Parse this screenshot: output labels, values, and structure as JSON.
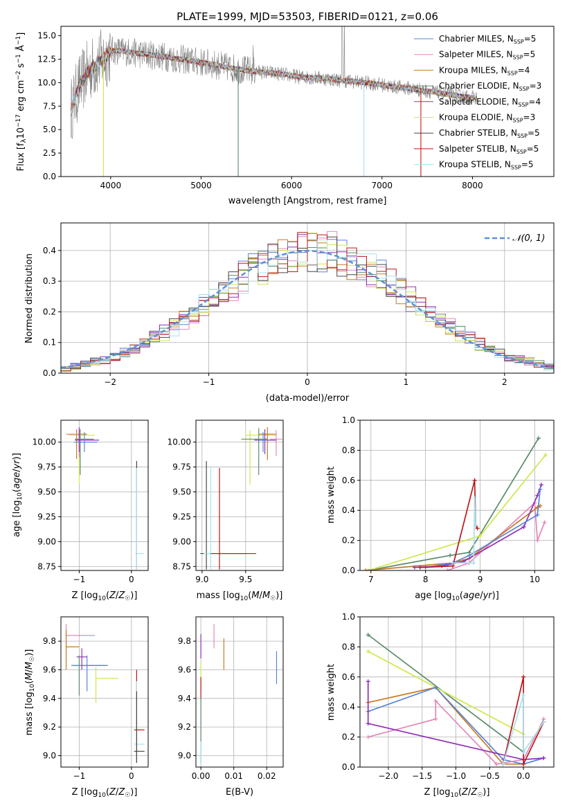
{
  "chart_data": [
    {
      "id": "spectrum",
      "type": "line",
      "title": "PLATE=1999, MJD=53503, FIBERID=0121, z=0.06",
      "xlabel": "wavelength [Angstrom, rest frame]",
      "ylabel": "Flux [fλ10⁻¹⁷ erg cm⁻² s⁻¹ Å⁻¹]",
      "xlim": [
        3450,
        8900
      ],
      "ylim": [
        0,
        16
      ],
      "xticks": [
        4000,
        5000,
        6000,
        7000,
        8000
      ],
      "yticks": [
        0.0,
        2.5,
        5.0,
        7.5,
        10.0,
        12.5,
        15.0
      ],
      "legend": "top-right",
      "data_color": "#808080",
      "continuum": [
        [
          3560,
          7.0
        ],
        [
          3650,
          9.6
        ],
        [
          3750,
          11.2
        ],
        [
          3850,
          12.0
        ],
        [
          3950,
          12.8
        ],
        [
          4000,
          13.4
        ],
        [
          4100,
          13.4
        ],
        [
          4300,
          13.1
        ],
        [
          4500,
          12.9
        ],
        [
          4700,
          12.6
        ],
        [
          4900,
          12.3
        ],
        [
          5100,
          12.0
        ],
        [
          5300,
          11.6
        ],
        [
          5500,
          11.3
        ],
        [
          5700,
          11.1
        ],
        [
          5900,
          10.9
        ],
        [
          6100,
          10.6
        ],
        [
          6300,
          10.5
        ],
        [
          6500,
          10.3
        ],
        [
          6700,
          10.1
        ],
        [
          6900,
          9.9
        ],
        [
          7100,
          9.6
        ],
        [
          7300,
          9.4
        ],
        [
          7500,
          9.1
        ],
        [
          7700,
          8.8
        ],
        [
          7900,
          8.5
        ],
        [
          8050,
          8.3
        ]
      ],
      "model_lines": [
        {
          "label": "Chabrier MILES, N$_{SSP}$=5",
          "color": "#5b84d6"
        },
        {
          "label": "Salpeter MILES, N$_{SSP}$=5",
          "color": "#e287b9"
        },
        {
          "label": "Kroupa MILES, N$_{SSP}$=4",
          "color": "#c87822"
        },
        {
          "label": "Chabrier ELODIE, N$_{SSP}$=3",
          "color": "#5a8a6b"
        },
        {
          "label": "Salpeter ELODIE, N$_{SSP}$=4",
          "color": "#8f2fb8"
        },
        {
          "label": "Kroupa ELODIE, N$_{SSP}$=3",
          "color": "#cde84b"
        },
        {
          "label": "Chabrier STELIB, N$_{SSP}$=5",
          "color": "#474747"
        },
        {
          "label": "Salpeter STELIB, N$_{SSP}$=5",
          "color": "#b81818"
        },
        {
          "label": "Kroupa STELIB, N$_{SSP}$=5",
          "color": "#a8e0ec"
        }
      ],
      "legend_entries": [
        {
          "name": "Chabrier MILES",
          "n": "5",
          "color": "#5b84d6"
        },
        {
          "name": "Salpeter MILES",
          "n": "5",
          "color": "#e287b9"
        },
        {
          "name": "Kroupa MILES",
          "n": "4",
          "color": "#c87822"
        },
        {
          "name": "Chabrier ELODIE",
          "n": "3",
          "color": "#5a8a6b"
        },
        {
          "name": "Salpeter ELODIE",
          "n": "4",
          "color": "#8f2fb8"
        },
        {
          "name": "Kroupa ELODIE",
          "n": "3",
          "color": "#cde84b"
        },
        {
          "name": "Chabrier STELIB",
          "n": "5",
          "color": "#474747"
        },
        {
          "name": "Salpeter STELIB",
          "n": "5",
          "color": "#b81818"
        },
        {
          "name": "Kroupa STELIB",
          "n": "5",
          "color": "#a8e0ec"
        }
      ]
    },
    {
      "id": "residuals",
      "type": "histogram",
      "xlabel": "(data-model)/error",
      "ylabel": "Normed distribution",
      "xlim": [
        -2.5,
        2.5
      ],
      "ylim": [
        0,
        0.49
      ],
      "xticks": [
        -2,
        -1,
        0,
        1,
        2
      ],
      "yticks": [
        0.0,
        0.1,
        0.2,
        0.3,
        0.4
      ],
      "grid": true,
      "legend": "top-right",
      "gaussian_label": "𝒩(0, 1)",
      "gaussian_color": "#5b8fd6",
      "colors": [
        "#5b84d6",
        "#e287b9",
        "#c87822",
        "#5a8a6b",
        "#8f2fb8",
        "#cde84b",
        "#474747",
        "#b81818",
        "#a8e0ec"
      ],
      "bin_width": 0.1
    },
    {
      "id": "age_vs_Z",
      "type": "errorbar",
      "xlabel": "Z [log₁₀(Z/Z☉)]",
      "ylabel": "age  [log₁₀(age/yr)]",
      "xlim": [
        -1.35,
        0.32
      ],
      "ylim": [
        8.71,
        10.22
      ],
      "xticks": [
        -1,
        0
      ],
      "yticks": [
        8.75,
        9.0,
        9.25,
        9.5,
        9.75,
        10.0
      ],
      "grid": true,
      "points": [
        {
          "x": -1.0,
          "xl": -1.2,
          "xh": -0.7,
          "y": 10.07,
          "yl": 9.58,
          "yh": 10.12,
          "c": "#cde84b"
        },
        {
          "x": -1.05,
          "xl": -1.25,
          "xh": -0.85,
          "y": 10.08,
          "yl": 9.83,
          "yh": 10.13,
          "c": "#c87822"
        },
        {
          "x": -1.0,
          "xl": -1.25,
          "xh": -0.95,
          "y": 10.08,
          "yl": 9.85,
          "yh": 10.12,
          "c": "#e287b9"
        },
        {
          "x": -0.98,
          "xl": -1.08,
          "xh": -0.72,
          "y": 10.03,
          "yl": 9.67,
          "yh": 10.13,
          "c": "#5a8a6b"
        },
        {
          "x": -1.0,
          "xl": -1.08,
          "xh": -0.62,
          "y": 10.02,
          "yl": 9.9,
          "yh": 10.15,
          "c": "#8f2fb8"
        },
        {
          "x": -0.9,
          "xl": -1.1,
          "xh": -0.65,
          "y": 10.0,
          "yl": 9.9,
          "yh": 10.1,
          "c": "#5b84d6"
        },
        {
          "x": 0.1,
          "xl": 0.08,
          "xh": 0.12,
          "y": 8.88,
          "yl": 8.72,
          "yh": 9.81,
          "c": "#474747"
        },
        {
          "x": 0.1,
          "xl": 0.08,
          "xh": 0.24,
          "y": 8.88,
          "yl": 8.72,
          "yh": 9.74,
          "c": "#a8e0ec"
        }
      ]
    },
    {
      "id": "age_vs_mass",
      "type": "errorbar",
      "xlabel": "mass [log₁₀(M/M☉)]",
      "ylabel": "",
      "xlim": [
        8.93,
        9.93
      ],
      "ylim": [
        8.71,
        10.22
      ],
      "xticks": [
        9.0,
        9.5
      ],
      "yticks": [
        8.75,
        9.0,
        9.25,
        9.5,
        9.75,
        10.0
      ],
      "grid": true,
      "points": [
        {
          "x": 9.55,
          "xl": 9.5,
          "xh": 9.85,
          "y": 10.07,
          "yl": 9.57,
          "yh": 10.12,
          "c": "#cde84b"
        },
        {
          "x": 9.75,
          "xl": 9.65,
          "xh": 9.85,
          "y": 10.08,
          "yl": 9.82,
          "yh": 10.15,
          "c": "#c87822"
        },
        {
          "x": 9.85,
          "xl": 9.78,
          "xh": 9.92,
          "y": 10.03,
          "yl": 9.86,
          "yh": 10.12,
          "c": "#e287b9"
        },
        {
          "x": 9.65,
          "xl": 9.45,
          "xh": 9.75,
          "y": 10.03,
          "yl": 9.67,
          "yh": 10.14,
          "c": "#5a8a6b"
        },
        {
          "x": 9.72,
          "xl": 9.6,
          "xh": 9.85,
          "y": 10.02,
          "yl": 9.88,
          "yh": 10.13,
          "c": "#8f2fb8"
        },
        {
          "x": 9.7,
          "xl": 9.65,
          "xh": 9.75,
          "y": 10.02,
          "yl": 9.9,
          "yh": 10.1,
          "c": "#5b84d6"
        },
        {
          "x": 9.05,
          "xl": 8.98,
          "xh": 9.5,
          "y": 8.88,
          "yl": 8.72,
          "yh": 9.81,
          "c": "#474747"
        },
        {
          "x": 9.1,
          "xl": 9.02,
          "xh": 9.55,
          "y": 8.88,
          "yl": 8.72,
          "yh": 9.75,
          "c": "#a8e0ec"
        },
        {
          "x": 9.2,
          "xl": 9.1,
          "xh": 9.62,
          "y": 8.88,
          "yl": 8.72,
          "yh": 9.74,
          "c": "#b81818"
        }
      ]
    },
    {
      "id": "weight_vs_age",
      "type": "line",
      "xlabel": "age  [log₁₀(age/yr)]",
      "ylabel": "mass weight",
      "xlim": [
        6.8,
        10.35
      ],
      "ylim": [
        0,
        1.0
      ],
      "xticks": [
        7,
        8,
        9,
        10
      ],
      "yticks": [
        0.0,
        0.2,
        0.4,
        0.6,
        0.8,
        1.0
      ],
      "grid": true,
      "series": [
        {
          "c": "#5a8a6b",
          "x": [
            6.95,
            8.45,
            8.8,
            10.07
          ],
          "y": [
            0.0,
            0.1,
            0.12,
            0.88
          ]
        },
        {
          "c": "#cde84b",
          "x": [
            6.95,
            9.0,
            10.2
          ],
          "y": [
            0.0,
            0.23,
            0.77
          ]
        },
        {
          "c": "#e287b9",
          "x": [
            8.4,
            8.8,
            10.0,
            10.05,
            10.18
          ],
          "y": [
            0.0,
            0.05,
            0.45,
            0.2,
            0.32
          ]
        },
        {
          "c": "#c87822",
          "x": [
            6.9,
            8.5,
            8.8,
            10.05,
            10.1
          ],
          "y": [
            0.0,
            0.05,
            0.08,
            0.42,
            0.43
          ]
        },
        {
          "c": "#8f2fb8",
          "x": [
            7.8,
            8.3,
            8.7,
            9.8,
            10.05,
            10.12
          ],
          "y": [
            0.02,
            0.03,
            0.06,
            0.29,
            0.5,
            0.57
          ]
        },
        {
          "c": "#5b84d6",
          "x": [
            8.0,
            8.5,
            8.8,
            10.05,
            10.1
          ],
          "y": [
            0.02,
            0.05,
            0.1,
            0.37,
            0.54
          ]
        },
        {
          "c": "#b81818",
          "x": [
            7.9,
            8.5,
            8.9,
            8.92,
            8.95
          ],
          "y": [
            0.02,
            0.03,
            0.6,
            0.3,
            0.28
          ]
        },
        {
          "c": "#a8e0ec",
          "x": [
            8.5,
            8.88,
            8.9,
            8.92
          ],
          "y": [
            0.05,
            0.05,
            0.48,
            0.3
          ]
        }
      ]
    },
    {
      "id": "mass_vs_Z",
      "type": "errorbar",
      "xlabel": "Z [log₁₀(Z/Z☉)]",
      "ylabel": "mass [log₁₀(M/M☉)]",
      "xlim": [
        -1.35,
        0.32
      ],
      "ylim": [
        8.92,
        9.97
      ],
      "xticks": [
        -1,
        0
      ],
      "yticks": [
        9.0,
        9.2,
        9.4,
        9.6,
        9.8
      ],
      "grid": true,
      "points": [
        {
          "x": -1.25,
          "xl": -1.25,
          "xh": -0.7,
          "y": 9.84,
          "yl": 9.75,
          "yh": 9.92,
          "c": "#e287b9"
        },
        {
          "x": -1.25,
          "xl": -1.25,
          "xh": -1.0,
          "y": 9.76,
          "yl": 9.6,
          "yh": 9.88,
          "c": "#c87822"
        },
        {
          "x": -0.95,
          "xl": -1.05,
          "xh": -0.85,
          "y": 9.69,
          "yl": 9.6,
          "yh": 9.75,
          "c": "#8f2fb8"
        },
        {
          "x": -1.0,
          "xl": -1.15,
          "xh": -0.45,
          "y": 9.63,
          "yl": 9.42,
          "yh": 9.7,
          "c": "#5a8a6b"
        },
        {
          "x": -0.85,
          "xl": -1.1,
          "xh": -0.5,
          "y": 9.63,
          "yl": 9.45,
          "yh": 9.7,
          "c": "#5b84d6"
        },
        {
          "x": -0.68,
          "xl": -0.68,
          "xh": -0.25,
          "y": 9.54,
          "yl": 9.37,
          "yh": 9.62,
          "c": "#cde84b"
        },
        {
          "x": 0.1,
          "xl": 0.05,
          "xh": 0.25,
          "y": 9.18,
          "yl": 8.95,
          "yh": 9.6,
          "c": "#b81818"
        },
        {
          "x": 0.1,
          "xl": 0.05,
          "xh": 0.25,
          "y": 9.08,
          "yl": 8.98,
          "yh": 9.52,
          "c": "#a8e0ec"
        },
        {
          "x": 0.1,
          "xl": 0.05,
          "xh": 0.25,
          "y": 9.03,
          "yl": 8.95,
          "yh": 9.45,
          "c": "#474747"
        }
      ]
    },
    {
      "id": "mass_vs_EBV",
      "type": "errorbar",
      "xlabel": "E(B-V)",
      "ylabel": "",
      "xlim": [
        -0.0015,
        0.025
      ],
      "ylim": [
        8.92,
        9.97
      ],
      "xticks": [
        0.0,
        0.01,
        0.02
      ],
      "yticks": [
        9.0,
        9.2,
        9.4,
        9.6,
        9.8
      ],
      "grid": true,
      "points": [
        {
          "x": 0.004,
          "xl": 0.004,
          "xh": 0.004,
          "y": 9.84,
          "yl": 9.75,
          "yh": 9.92,
          "c": "#e287b9"
        },
        {
          "x": 0.007,
          "xl": 0.007,
          "xh": 0.007,
          "y": 9.76,
          "yl": 9.6,
          "yh": 9.82,
          "c": "#c87822"
        },
        {
          "x": 0.0,
          "xl": 0.0,
          "xh": 0.0,
          "y": 9.8,
          "yl": 9.68,
          "yh": 9.85,
          "c": "#8f2fb8"
        },
        {
          "x": 0.023,
          "xl": 0.023,
          "xh": 0.023,
          "y": 9.62,
          "yl": 9.5,
          "yh": 9.73,
          "c": "#5b84d6"
        },
        {
          "x": 0.0,
          "xl": 0.0,
          "xh": 0.0,
          "y": 9.55,
          "yl": 9.45,
          "yh": 9.65,
          "c": "#cde84b"
        },
        {
          "x": 0.0,
          "xl": 0.0,
          "xh": 0.0,
          "y": 9.5,
          "yl": 9.4,
          "yh": 9.55,
          "c": "#b81818"
        },
        {
          "x": 0.0,
          "xl": 0.0,
          "xh": 0.0,
          "y": 9.2,
          "yl": 8.95,
          "yh": 9.4,
          "c": "#5a8a6b"
        },
        {
          "x": 0.0,
          "xl": 0.0,
          "xh": 0.0,
          "y": 9.0,
          "yl": 8.93,
          "yh": 9.1,
          "c": "#a8e0ec"
        }
      ]
    },
    {
      "id": "weight_vs_Z",
      "type": "line",
      "xlabel": "Z [log₁₀(Z/Z☉)]",
      "ylabel": "mass weight",
      "xlim": [
        -2.42,
        0.45
      ],
      "ylim": [
        0,
        1.0
      ],
      "xticks": [
        -2.0,
        -1.5,
        -1.0,
        -0.5,
        0.0
      ],
      "yticks": [
        0.0,
        0.2,
        0.4,
        0.6,
        0.8,
        1.0
      ],
      "grid": true,
      "series": [
        {
          "c": "#5a8a6b",
          "x": [
            -2.3,
            0.0
          ],
          "y": [
            0.88,
            0.1
          ]
        },
        {
          "c": "#cde84b",
          "x": [
            -2.3,
            0.0
          ],
          "y": [
            0.77,
            0.22
          ]
        },
        {
          "c": "#c87822",
          "x": [
            -2.3,
            -1.3,
            -0.3,
            0.0
          ],
          "y": [
            0.43,
            0.53,
            0.02,
            0.02
          ]
        },
        {
          "c": "#5b84d6",
          "x": [
            -2.3,
            -1.3,
            -0.3,
            0.0,
            0.3
          ],
          "y": [
            0.37,
            0.53,
            0.05,
            0.02,
            0.06
          ]
        },
        {
          "c": "#e287b9",
          "x": [
            -2.3,
            -1.3,
            -1.3,
            -0.4,
            0.0,
            0.3
          ],
          "y": [
            0.2,
            0.32,
            0.44,
            0.02,
            0.05,
            0.32
          ]
        },
        {
          "c": "#8f2fb8",
          "x": [
            -2.3,
            -2.3,
            0.0,
            0.3
          ],
          "y": [
            0.57,
            0.29,
            0.05,
            0.06
          ]
        },
        {
          "c": "#b81818",
          "x": [
            -0.3,
            0.0,
            0.0,
            0.3
          ],
          "y": [
            0.02,
            0.6,
            0.02,
            0.3
          ]
        },
        {
          "c": "#a8e0ec",
          "x": [
            -0.3,
            0.0,
            0.0,
            0.3
          ],
          "y": [
            0.02,
            0.48,
            0.1,
            0.3
          ]
        }
      ]
    }
  ]
}
